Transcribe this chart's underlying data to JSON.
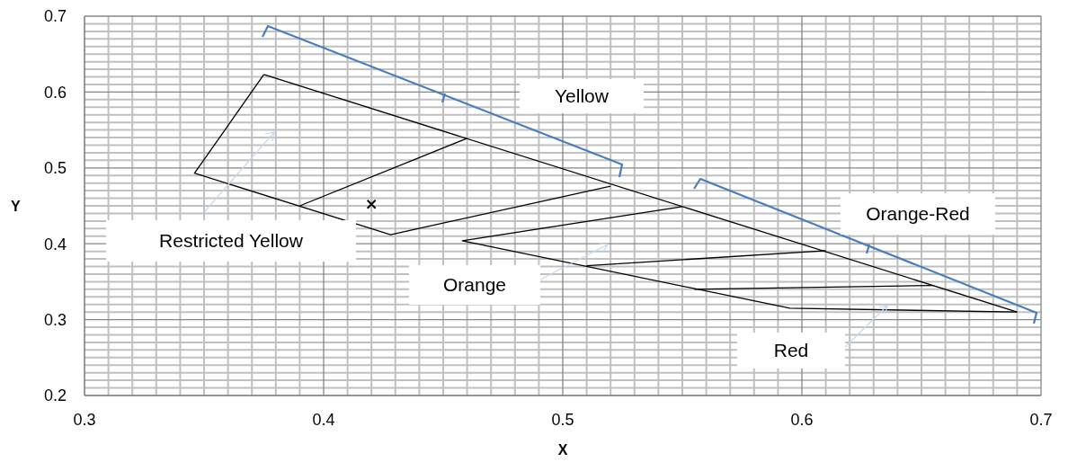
{
  "chart_data": {
    "type": "line",
    "xlabel": "X",
    "ylabel": "Y",
    "xlim": [
      0.3,
      0.7
    ],
    "ylim": [
      0.2,
      0.7
    ],
    "xticks": [
      0.3,
      {
        "value": 0.31,
        "label": null
      },
      {
        "value": 0.32,
        "label": null
      },
      {
        "value": 0.33,
        "label": null
      },
      {
        "value": 0.34,
        "label": null
      },
      {
        "value": 0.35,
        "label": null
      },
      {
        "value": 0.36,
        "label": null
      },
      {
        "value": 0.37,
        "label": null
      },
      {
        "value": 0.38,
        "label": null
      },
      {
        "value": 0.39,
        "label": null
      },
      0.4,
      {
        "value": 0.41,
        "label": null
      },
      {
        "value": 0.42,
        "label": null
      },
      {
        "value": 0.43,
        "label": null
      },
      {
        "value": 0.44,
        "label": null
      },
      {
        "value": 0.45,
        "label": null
      },
      {
        "value": 0.46,
        "label": null
      },
      {
        "value": 0.47,
        "label": null
      },
      {
        "value": 0.48,
        "label": null
      },
      {
        "value": 0.49,
        "label": null
      },
      0.5,
      {
        "value": 0.51,
        "label": null
      },
      {
        "value": 0.52,
        "label": null
      },
      {
        "value": 0.53,
        "label": null
      },
      {
        "value": 0.54,
        "label": null
      },
      {
        "value": 0.55,
        "label": null
      },
      {
        "value": 0.56,
        "label": null
      },
      {
        "value": 0.57,
        "label": null
      },
      {
        "value": 0.58,
        "label": null
      },
      {
        "value": 0.59,
        "label": null
      },
      0.6,
      {
        "value": 0.61,
        "label": null
      },
      {
        "value": 0.62,
        "label": null
      },
      {
        "value": 0.63,
        "label": null
      },
      {
        "value": 0.64,
        "label": null
      },
      {
        "value": 0.65,
        "label": null
      },
      {
        "value": 0.66,
        "label": null
      },
      {
        "value": 0.67,
        "label": null
      },
      {
        "value": 0.68,
        "label": null
      },
      {
        "value": 0.69,
        "label": null
      },
      0.7
    ],
    "yticks": [
      0.2,
      {
        "value": 0.21,
        "label": null
      },
      {
        "value": 0.22,
        "label": null
      },
      {
        "value": 0.23,
        "label": null
      },
      {
        "value": 0.24,
        "label": null
      },
      {
        "value": 0.25,
        "label": null
      },
      {
        "value": 0.26,
        "label": null
      },
      {
        "value": 0.27,
        "label": null
      },
      {
        "value": 0.28,
        "label": null
      },
      {
        "value": 0.29,
        "label": null
      },
      0.3,
      {
        "value": 0.31,
        "label": null
      },
      {
        "value": 0.32,
        "label": null
      },
      {
        "value": 0.33,
        "label": null
      },
      {
        "value": 0.34,
        "label": null
      },
      {
        "value": 0.35,
        "label": null
      },
      {
        "value": 0.36,
        "label": null
      },
      {
        "value": 0.37,
        "label": null
      },
      {
        "value": 0.38,
        "label": null
      },
      {
        "value": 0.39,
        "label": null
      },
      0.4,
      {
        "value": 0.41,
        "label": null
      },
      {
        "value": 0.42,
        "label": null
      },
      {
        "value": 0.43,
        "label": null
      },
      {
        "value": 0.44,
        "label": null
      },
      {
        "value": 0.45,
        "label": null
      },
      {
        "value": 0.46,
        "label": null
      },
      {
        "value": 0.47,
        "label": null
      },
      {
        "value": 0.48,
        "label": null
      },
      {
        "value": 0.49,
        "label": null
      },
      0.5,
      {
        "value": 0.51,
        "label": null
      },
      {
        "value": 0.52,
        "label": null
      },
      {
        "value": 0.53,
        "label": null
      },
      {
        "value": 0.54,
        "label": null
      },
      {
        "value": 0.55,
        "label": null
      },
      {
        "value": 0.56,
        "label": null
      },
      {
        "value": 0.57,
        "label": null
      },
      {
        "value": 0.58,
        "label": null
      },
      {
        "value": 0.59,
        "label": null
      },
      0.6,
      {
        "value": 0.61,
        "label": null
      },
      {
        "value": 0.62,
        "label": null
      },
      {
        "value": 0.63,
        "label": null
      },
      {
        "value": 0.64,
        "label": null
      },
      {
        "value": 0.65,
        "label": null
      },
      {
        "value": 0.66,
        "label": null
      },
      {
        "value": 0.67,
        "label": null
      },
      {
        "value": 0.68,
        "label": null
      },
      {
        "value": 0.69,
        "label": null
      },
      0.7
    ],
    "grid": true,
    "marker": "none",
    "line_style": "solid",
    "annotations": [
      "Yellow",
      "Restricted Yellow",
      "Orange",
      "Orange-Red",
      "Red"
    ],
    "series": [
      {
        "color": "#000000",
        "x": [
          0.375,
          0.69
        ],
        "values": [
          0.623,
          0.31
        ]
      },
      {
        "color": "#000000",
        "x": [
          0.375,
          0.346,
          0.428,
          0.52
        ],
        "values": [
          0.623,
          0.493,
          0.412,
          0.476
        ]
      },
      {
        "color": "#000000",
        "x": [
          0.39,
          0.46
        ],
        "values": [
          0.45,
          0.539
        ]
      },
      {
        "color": "#000000",
        "x": [
          0.55,
          0.458,
          0.595,
          0.69
        ],
        "values": [
          0.449,
          0.404,
          0.315,
          0.31
        ]
      },
      {
        "color": "#000000",
        "x": [
          0.51,
          0.61
        ],
        "values": [
          0.371,
          0.391
        ]
      },
      {
        "color": "#000000",
        "x": [
          0.555,
          0.655
        ],
        "values": [
          0.34,
          0.345
        ]
      },
      {
        "type": "scatter",
        "marker": "cross",
        "color": "#000000",
        "x": [
          0.42
        ],
        "values": [
          0.452
        ]
      }
    ]
  }
}
